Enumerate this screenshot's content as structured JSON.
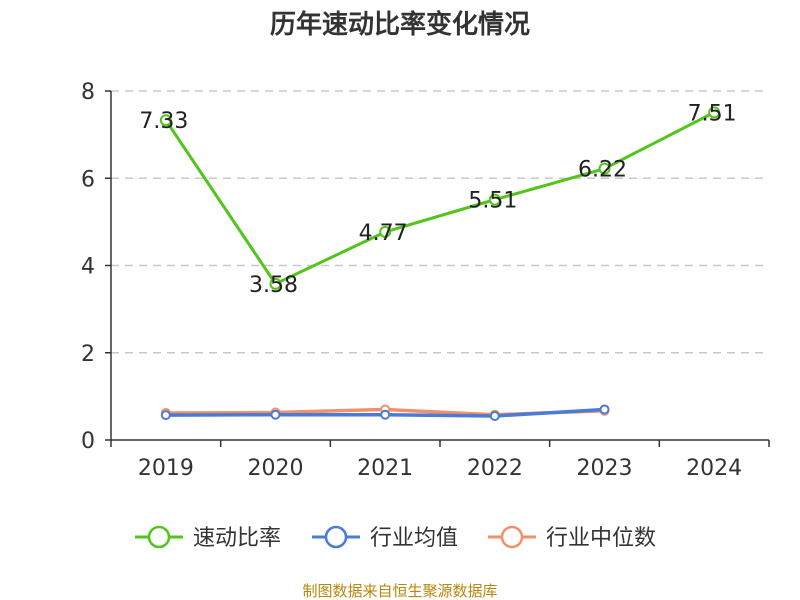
{
  "chart_data": {
    "type": "line",
    "title": "历年速动比率变化情况",
    "categories": [
      "2019",
      "2020",
      "2021",
      "2022",
      "2023",
      "2024"
    ],
    "ylim": [
      0,
      8
    ],
    "yticks": [
      0,
      2,
      4,
      6,
      8
    ],
    "grid": true,
    "legend_position": "bottom",
    "series": [
      {
        "name": "速动比率",
        "color": "#52c41a",
        "values": [
          7.33,
          3.58,
          4.77,
          5.51,
          6.22,
          7.51
        ],
        "labels": [
          "7.33",
          "3.58",
          "4.77",
          "5.51",
          "6.22",
          "7.51"
        ]
      },
      {
        "name": "行业均值",
        "color": "#4a7bd8",
        "values": [
          0.57,
          0.58,
          0.58,
          0.55,
          0.7,
          null
        ]
      },
      {
        "name": "行业中位数",
        "color": "#f0916a",
        "values": [
          0.62,
          0.63,
          0.7,
          0.58,
          0.67,
          null
        ]
      }
    ]
  },
  "source_text": "制图数据来自恒生聚源数据库"
}
